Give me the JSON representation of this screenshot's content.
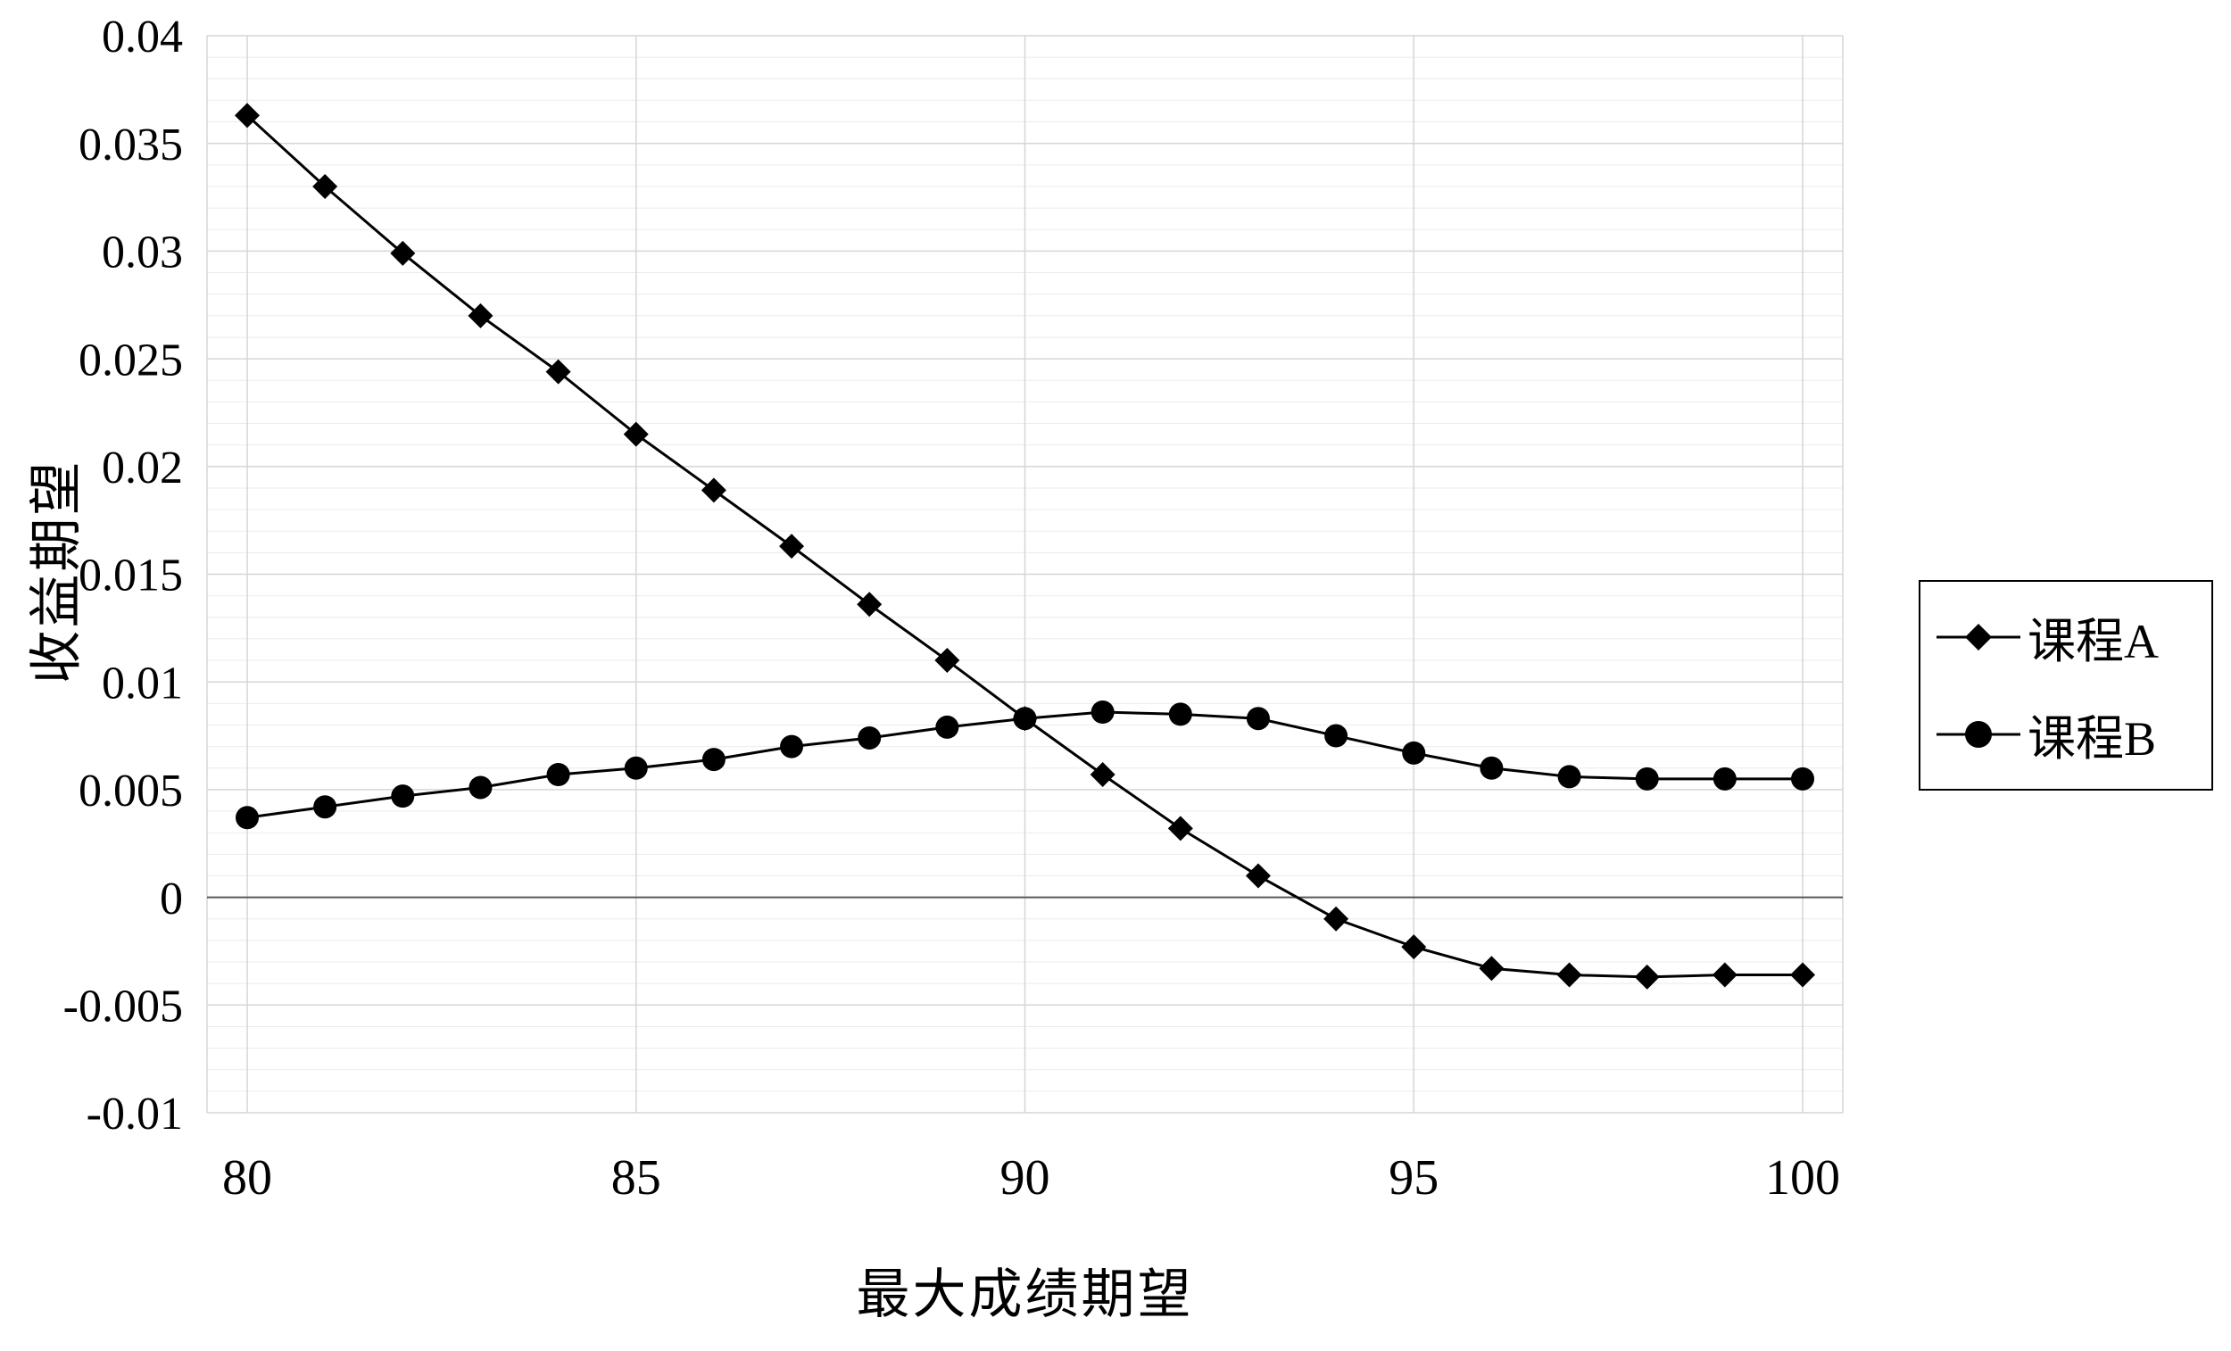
{
  "chart_data": {
    "type": "line",
    "title": "",
    "xlabel": "最大成绩期望",
    "ylabel": "收益期望",
    "xlim": [
      80,
      100
    ],
    "ylim": [
      -0.01,
      0.04
    ],
    "grid": true,
    "legend_position": "right",
    "x": [
      80,
      81,
      82,
      83,
      84,
      85,
      86,
      87,
      88,
      89,
      90,
      91,
      92,
      93,
      94,
      95,
      96,
      97,
      98,
      99,
      100
    ],
    "series": [
      {
        "name": "课程A",
        "marker": "diamond",
        "values": [
          0.0363,
          0.033,
          0.0299,
          0.027,
          0.0244,
          0.0215,
          0.0189,
          0.0163,
          0.0136,
          0.011,
          0.0083,
          0.0057,
          0.0032,
          0.001,
          -0.001,
          -0.0023,
          -0.0033,
          -0.0036,
          -0.0037,
          -0.0036,
          -0.0036
        ]
      },
      {
        "name": "课程B",
        "marker": "circle",
        "values": [
          0.0037,
          0.0042,
          0.0047,
          0.0051,
          0.0057,
          0.006,
          0.0064,
          0.007,
          0.0074,
          0.0079,
          0.0083,
          0.0086,
          0.0085,
          0.0083,
          0.0075,
          0.0067,
          0.006,
          0.0056,
          0.0055,
          0.0055,
          0.0055
        ]
      }
    ],
    "y_ticks": [
      {
        "v": 0.04,
        "label": "0.04"
      },
      {
        "v": 0.035,
        "label": "0.035"
      },
      {
        "v": 0.03,
        "label": "0.03"
      },
      {
        "v": 0.025,
        "label": "0.025"
      },
      {
        "v": 0.02,
        "label": "0.02"
      },
      {
        "v": 0.015,
        "label": "0.015"
      },
      {
        "v": 0.01,
        "label": "0.01"
      },
      {
        "v": 0.005,
        "label": "0.005"
      },
      {
        "v": 0,
        "label": "0"
      },
      {
        "v": -0.005,
        "label": "-0.005"
      },
      {
        "v": -0.01,
        "label": "-0.01"
      }
    ],
    "x_ticks": [
      {
        "v": 80,
        "label": "80"
      },
      {
        "v": 85,
        "label": "85"
      },
      {
        "v": 90,
        "label": "90"
      },
      {
        "v": 95,
        "label": "95"
      },
      {
        "v": 100,
        "label": "100"
      }
    ],
    "y_minor_step": 0.001,
    "colors": {
      "series": "#000000",
      "grid_minor": "#ebebeb",
      "grid_major": "#d6d6d6",
      "zero_line": "#595959",
      "text": "#000000"
    }
  }
}
